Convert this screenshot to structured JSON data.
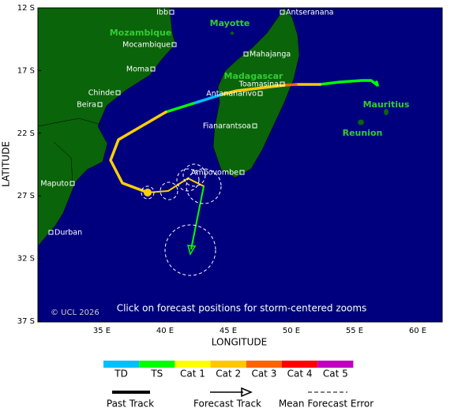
{
  "map": {
    "x_axis": {
      "label": "LONGITUDE",
      "ticks": [
        "35 E",
        "40 E",
        "45 E",
        "50 E",
        "55 E",
        "60 E"
      ]
    },
    "y_axis": {
      "label": "LATITUDE",
      "ticks": [
        "12 S",
        "17 S",
        "22 S",
        "27 S",
        "32 S",
        "37 S"
      ]
    },
    "region_labels": [
      "Mozambique",
      "Mayotte",
      "Madagascar",
      "Mauritius",
      "Reunion"
    ],
    "city_labels": [
      "Ibb",
      "Antseranana",
      "Mocambique",
      "Moma",
      "Chinde",
      "Beira",
      "Mahajanga",
      "Toamasina",
      "Antananarivo",
      "Fianarantsoa",
      "Ambovombe",
      "Maputo",
      "Durban"
    ],
    "copyright": "© UCL 2026",
    "instruction": "Click on forecast positions for storm-centered zooms"
  },
  "legend": {
    "categories": [
      {
        "name": "TD",
        "color": "#00bfff"
      },
      {
        "name": "TS",
        "color": "#00ff00"
      },
      {
        "name": "Cat 1",
        "color": "#ffff00"
      },
      {
        "name": "Cat 2",
        "color": "#ffc800"
      },
      {
        "name": "Cat 3",
        "color": "#ff6400"
      },
      {
        "name": "Cat 4",
        "color": "#ff0000"
      },
      {
        "name": "Cat 5",
        "color": "#c000c0"
      }
    ],
    "past_track": "Past Track",
    "forecast_track": "Forecast Track",
    "error": "Mean Forecast Error"
  }
}
